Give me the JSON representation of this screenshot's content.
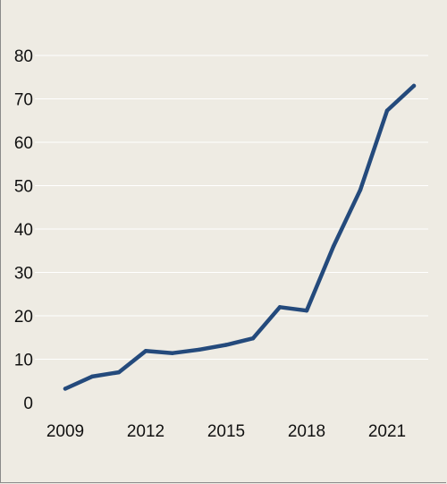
{
  "chart_data": {
    "type": "line",
    "title": "",
    "xlabel": "",
    "ylabel": "",
    "grid": "horizontal",
    "legend": "none",
    "xlim": [
      2009,
      2022
    ],
    "ylim": [
      0,
      80
    ],
    "x_ticks": [
      {
        "value": 2009,
        "label": "2009"
      },
      {
        "value": 2012,
        "label": "2012"
      },
      {
        "value": 2015,
        "label": "2015"
      },
      {
        "value": 2018,
        "label": "2018"
      },
      {
        "value": 2021,
        "label": "2021"
      }
    ],
    "y_ticks": [
      {
        "value": 0,
        "label": "0"
      },
      {
        "value": 10,
        "label": "10"
      },
      {
        "value": 20,
        "label": "20"
      },
      {
        "value": 30,
        "label": "30"
      },
      {
        "value": 40,
        "label": "40"
      },
      {
        "value": 50,
        "label": "50"
      },
      {
        "value": 60,
        "label": "60"
      },
      {
        "value": 70,
        "label": "70"
      },
      {
        "value": 80,
        "label": "80"
      }
    ],
    "x": [
      2009,
      2010,
      2011,
      2012,
      2013,
      2014,
      2015,
      2016,
      2017,
      2018,
      2019,
      2020,
      2021,
      2022
    ],
    "series": [
      {
        "values": [
          3.2,
          6.0,
          7.0,
          11.9,
          11.4,
          12.2,
          13.3,
          14.8,
          22.0,
          21.2,
          36.0,
          49.0,
          67.3,
          73.0
        ],
        "color": "#244a7c"
      }
    ],
    "colors": {
      "background": "#eeebe3",
      "grid": "#ffffff",
      "line": "#244a7c",
      "text": "#111111"
    }
  }
}
